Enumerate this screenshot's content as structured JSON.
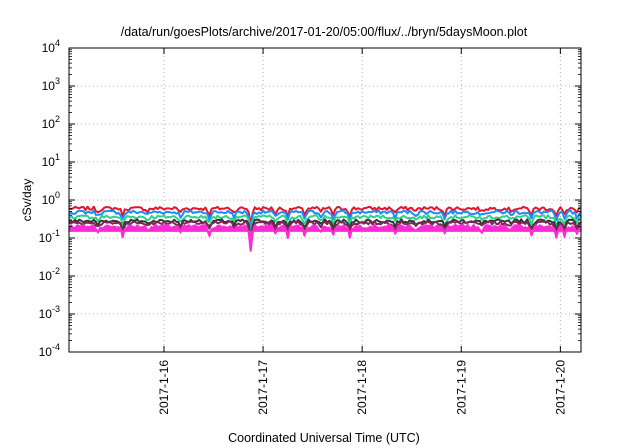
{
  "chart_data": {
    "type": "area",
    "title": "/data/run/goesPlots/archive/2017-01-20/05:00/flux/../bryn/5daysMoon.plot",
    "xlabel": "Coordinated Universal Time (UTC)",
    "ylabel": "cSv/day",
    "y_scale": "log",
    "ylim": [
      0.0001,
      10000
    ],
    "y_ticks": [
      {
        "base": "10",
        "exp": "-4",
        "value": 0.0001
      },
      {
        "base": "10",
        "exp": "-3",
        "value": 0.001
      },
      {
        "base": "10",
        "exp": "-2",
        "value": 0.01
      },
      {
        "base": "10",
        "exp": "-1",
        "value": 0.1
      },
      {
        "base": "10",
        "exp": "0",
        "value": 1
      },
      {
        "base": "10",
        "exp": "1",
        "value": 10
      },
      {
        "base": "10",
        "exp": "2",
        "value": 100
      },
      {
        "base": "10",
        "exp": "3",
        "value": 1000
      },
      {
        "base": "10",
        "exp": "4",
        "value": 10000
      }
    ],
    "xlim": [
      "2017-01-15T01:00",
      "2017-01-20T05:00"
    ],
    "x_ticks": [
      {
        "label": "2017-1-16",
        "date": "2017-01-16T00:00"
      },
      {
        "label": "2017-1-17",
        "date": "2017-01-17T00:00"
      },
      {
        "label": "2017-1-18",
        "date": "2017-01-18T00:00"
      },
      {
        "label": "2017-1-19",
        "date": "2017-01-19T00:00"
      },
      {
        "label": "2017-1-20",
        "date": "2017-01-20T00:00"
      }
    ],
    "grid": true,
    "legend": "none",
    "series": [
      {
        "color": "#e8142a",
        "baseline": 0.6,
        "dip_scale": 0.75
      },
      {
        "color": "#1a8cff",
        "baseline": 0.48,
        "dip_scale": 0.8
      },
      {
        "color": "#2fd18a",
        "baseline": 0.36,
        "dip_scale": 0.85
      },
      {
        "color": "#333333",
        "baseline": 0.28,
        "dip_scale": 0.85
      },
      {
        "color": "#7a2a55",
        "baseline": 0.25,
        "dip_scale": 0.9
      },
      {
        "color": "#ff2bd6",
        "baseline": 0.2,
        "dip_scale": 1.0
      }
    ],
    "dips": [
      {
        "date": "2017-01-15T08:00",
        "factor": 0.75
      },
      {
        "date": "2017-01-15T14:00",
        "factor": 0.55
      },
      {
        "date": "2017-01-15T20:00",
        "factor": 0.8
      },
      {
        "date": "2017-01-16T04:00",
        "factor": 0.7
      },
      {
        "date": "2017-01-16T11:00",
        "factor": 0.6
      },
      {
        "date": "2017-01-16T17:00",
        "factor": 0.7
      },
      {
        "date": "2017-01-16T21:00",
        "factor": 0.22
      },
      {
        "date": "2017-01-17T03:00",
        "factor": 0.65
      },
      {
        "date": "2017-01-17T06:00",
        "factor": 0.55
      },
      {
        "date": "2017-01-17T10:00",
        "factor": 0.6
      },
      {
        "date": "2017-01-17T14:00",
        "factor": 0.75
      },
      {
        "date": "2017-01-17T17:00",
        "factor": 0.6
      },
      {
        "date": "2017-01-17T21:00",
        "factor": 0.55
      },
      {
        "date": "2017-01-18T08:00",
        "factor": 0.7
      },
      {
        "date": "2017-01-18T13:00",
        "factor": 0.8
      },
      {
        "date": "2017-01-18T20:00",
        "factor": 0.6
      },
      {
        "date": "2017-01-19T05:00",
        "factor": 0.75
      },
      {
        "date": "2017-01-19T12:00",
        "factor": 0.8
      },
      {
        "date": "2017-01-19T17:00",
        "factor": 0.6
      },
      {
        "date": "2017-01-19T23:00",
        "factor": 0.5
      },
      {
        "date": "2017-01-20T01:00",
        "factor": 0.55
      },
      {
        "date": "2017-01-20T04:00",
        "factor": 0.65
      }
    ]
  }
}
